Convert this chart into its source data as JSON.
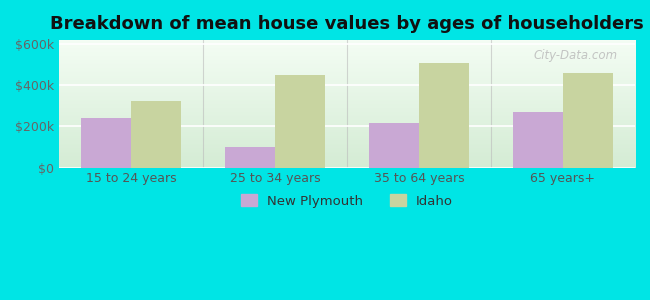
{
  "title": "Breakdown of mean house values by ages of householders",
  "categories": [
    "15 to 24 years",
    "25 to 34 years",
    "35 to 64 years",
    "65 years+"
  ],
  "new_plymouth": [
    240000,
    100000,
    215000,
    268000
  ],
  "idaho": [
    322000,
    450000,
    510000,
    460000
  ],
  "color_new_plymouth": "#c9a8d4",
  "color_idaho": "#c8d4a0",
  "ylim": [
    0,
    620000
  ],
  "yticks": [
    0,
    200000,
    400000,
    600000
  ],
  "ytick_labels": [
    "$0",
    "$200k",
    "$400k",
    "$600k"
  ],
  "bg_top": "#f4fdf4",
  "bg_bottom": "#d4ecd4",
  "outer_background": "#00e5e5",
  "legend_new_plymouth": "New Plymouth",
  "legend_idaho": "Idaho",
  "watermark": "City-Data.com",
  "bar_width": 0.35,
  "title_fontsize": 13
}
